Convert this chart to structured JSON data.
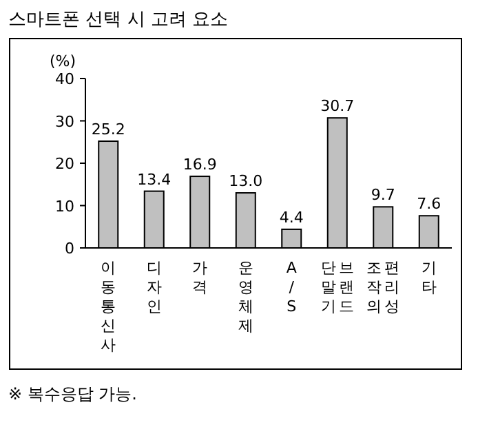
{
  "chart_data": {
    "type": "bar",
    "title": "스마트폰 선택 시 고려 요소",
    "ylabel": "(%)",
    "categories": [
      "이동통신사",
      "디자인",
      "가격",
      "운영체제",
      "A/S",
      "단말기 브랜드",
      "조작의 편리성",
      "기타"
    ],
    "values": [
      25.2,
      13.4,
      16.9,
      13.0,
      4.4,
      30.7,
      9.7,
      7.6
    ],
    "value_labels": [
      "25.2",
      "13.4",
      "16.9",
      "13.0",
      "4.4",
      "30.7",
      "9.7",
      "7.6"
    ],
    "color": "#c0c0c0",
    "ylim": [
      0,
      40
    ],
    "yticks": [
      0,
      10,
      20,
      30,
      40
    ],
    "grid": false,
    "annotations": [
      "※ 복수응답 가능."
    ]
  }
}
